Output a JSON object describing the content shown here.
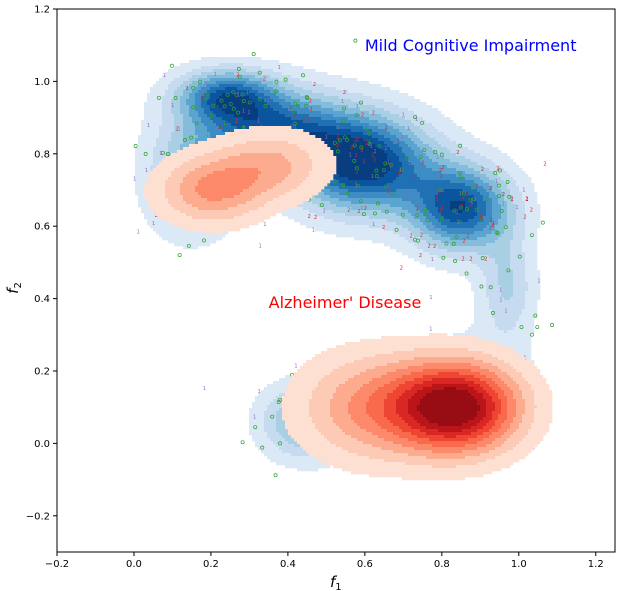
{
  "chart_data": {
    "type": "kde-contour-scatter",
    "title": "",
    "xlabel": "f",
    "xlabel_sub": "1",
    "ylabel": "f",
    "ylabel_sub": "2",
    "xlim": [
      -0.2,
      1.25
    ],
    "ylim": [
      -0.3,
      1.2
    ],
    "xticks": [
      -0.2,
      0.0,
      0.2,
      0.4,
      0.6,
      0.8,
      1.0,
      1.2
    ],
    "xtick_labels": [
      "−0.2",
      "0.0",
      "0.2",
      "0.4",
      "0.6",
      "0.8",
      "1.0",
      "1.2"
    ],
    "yticks": [
      -0.2,
      0.0,
      0.2,
      0.4,
      0.6,
      0.8,
      1.0,
      1.2
    ],
    "ytick_labels": [
      "−0.2",
      "0.0",
      "0.2",
      "0.4",
      "0.6",
      "0.8",
      "1.0",
      "1.2"
    ],
    "annotations": [
      {
        "text": "Mild Cognitive Impairment",
        "x": 0.6,
        "y": 1.1,
        "color": "#0000ff"
      },
      {
        "text": "Alzheimer' Disease",
        "x": 0.35,
        "y": 0.39,
        "color": "#ff0000"
      }
    ],
    "series": [
      {
        "name": "Mild Cognitive Impairment density",
        "colormap": "Blues",
        "colors": [
          "#dbe9f6",
          "#c6dbef",
          "#a9cfe5",
          "#85bcdc",
          "#5ca4d0",
          "#3d8dc4",
          "#2070b4",
          "#0b559f",
          "#083e80"
        ],
        "levels": 9,
        "components": [
          {
            "cx": 0.24,
            "cy": 0.96,
            "sx": 0.088,
            "sy": 0.05,
            "w": 0.7
          },
          {
            "cx": 0.36,
            "cy": 0.86,
            "sx": 0.14,
            "sy": 0.08,
            "w": 0.8
          },
          {
            "cx": 0.6,
            "cy": 0.77,
            "sx": 0.12,
            "sy": 0.09,
            "w": 1.0
          },
          {
            "cx": 0.85,
            "cy": 0.65,
            "sx": 0.09,
            "sy": 0.08,
            "w": 0.9
          },
          {
            "cx": 0.15,
            "cy": 0.72,
            "sx": 0.08,
            "sy": 0.1,
            "w": 0.4
          },
          {
            "cx": 0.97,
            "cy": 0.43,
            "sx": 0.05,
            "sy": 0.1,
            "w": 0.3
          },
          {
            "cx": 0.45,
            "cy": 0.06,
            "sx": 0.08,
            "sy": 0.07,
            "w": 0.5
          },
          {
            "cx": 0.86,
            "cy": 0.12,
            "sx": 0.11,
            "sy": 0.1,
            "w": 0.4
          }
        ]
      },
      {
        "name": "Alzheimer' Disease density",
        "colormap": "Reds",
        "colors": [
          "#fee0d2",
          "#fdcab5",
          "#fcab8f",
          "#fc8a6a",
          "#f9694c",
          "#ef4533",
          "#d92723",
          "#bb151a",
          "#980c13"
        ],
        "levels": 9,
        "components": [
          {
            "cx": 0.84,
            "cy": 0.1,
            "sx": 0.11,
            "sy": 0.085,
            "w": 1.0
          },
          {
            "cx": 0.62,
            "cy": 0.1,
            "sx": 0.13,
            "sy": 0.1,
            "w": 0.4
          },
          {
            "cx": 0.2,
            "cy": 0.7,
            "sx": 0.095,
            "sy": 0.065,
            "w": 0.4
          },
          {
            "cx": 0.36,
            "cy": 0.77,
            "sx": 0.1,
            "sy": 0.065,
            "w": 0.3
          }
        ]
      }
    ],
    "scatter": [
      {
        "name": "group o",
        "marker": "o",
        "color": "#2ca02c",
        "count": 220
      },
      {
        "name": "group 1",
        "marker": "1",
        "color": "#9467bd",
        "count": 160
      },
      {
        "name": "group 2",
        "marker": "2",
        "color": "#d62728",
        "count": 160
      }
    ]
  }
}
